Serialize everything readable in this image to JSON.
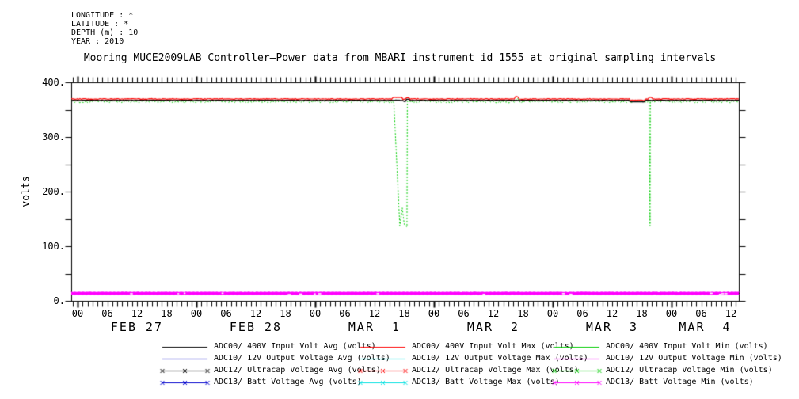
{
  "meta": {
    "lines": [
      "LONGITUDE : *",
      "LATITUDE : *",
      "DEPTH (m) : 10",
      "YEAR : 2010"
    ]
  },
  "chart_data": {
    "type": "line",
    "title": "Mooring MUCE2009LAB Controller–Power data from MBARI instrument id 1555 at original sampling intervals",
    "ylabel": "volts",
    "ylim": [
      0,
      400
    ],
    "y_minor_step": 50,
    "y_ticks": [
      {
        "v": 400,
        "label": "400."
      },
      {
        "v": 300,
        "label": "300."
      },
      {
        "v": 200,
        "label": "200."
      },
      {
        "v": 100,
        "label": "100."
      },
      {
        "v": 0,
        "label": "0."
      }
    ],
    "x_axis": {
      "start_hour": -1.28,
      "end_hour": 133.6,
      "hour_tick_step": 1,
      "hour_label_step": 6,
      "hour_labels": [
        "00",
        "06",
        "12",
        "18"
      ],
      "days": [
        {
          "label": "FEB 27"
        },
        {
          "label": "FEB 28"
        },
        {
          "label": "MAR  1"
        },
        {
          "label": "MAR  2"
        },
        {
          "label": "MAR  3"
        },
        {
          "label": "MAR  4"
        }
      ]
    },
    "grid": false,
    "legend_position": "bottom",
    "series": [
      {
        "id": "adc00_avg",
        "label": "ADC00/ 400V Input Volt Avg (volts)",
        "color": "#000000",
        "marker": false,
        "legend_col": 0,
        "legend_row": 0,
        "base": 367,
        "noise": 0.35,
        "width": 1.4,
        "bumps": [
          [
            65.8,
            66.3,
            -2
          ],
          [
            66.35,
            67.0,
            2
          ],
          [
            111.5,
            114.5,
            -2.5
          ]
        ]
      },
      {
        "id": "adc10_avg",
        "label": "ADC10/ 12V Output Voltage Avg (volts)",
        "color": "#0000cc",
        "marker": false,
        "legend_col": 0,
        "legend_row": 1,
        "base": 13.3,
        "noise": 0.15,
        "width": 1
      },
      {
        "id": "adc12_avg",
        "label": "ADC12/ Ultracap Voltage Avg (volts)",
        "color": "#000000",
        "marker": true,
        "legend_col": 0,
        "legend_row": 2,
        "base": 13.7,
        "noise": 0.15,
        "width": 1
      },
      {
        "id": "adc13_avg",
        "label": "ADC13/ Batt Voltage Avg (volts)",
        "color": "#0000cc",
        "marker": true,
        "legend_col": 0,
        "legend_row": 3,
        "base": 13.1,
        "noise": 0.15,
        "width": 1
      },
      {
        "id": "adc00_max",
        "label": "ADC00/ 400V Input Volt Max (volts)",
        "color": "#ff0000",
        "marker": false,
        "legend_col": 1,
        "legend_row": 0,
        "base": 369.6,
        "noise": 0.7,
        "width": 1.2,
        "bumps": [
          [
            63.5,
            65.5,
            3
          ],
          [
            66.3,
            67.2,
            2.5
          ],
          [
            88.3,
            89.0,
            4
          ],
          [
            111.5,
            114.5,
            -2.5
          ],
          [
            115.4,
            116.2,
            3
          ]
        ]
      },
      {
        "id": "adc10_max",
        "label": "ADC10/ 12V Output Voltage Max (volts)",
        "color": "#00e0e0",
        "marker": false,
        "legend_col": 1,
        "legend_row": 1,
        "base": 14.5,
        "noise": 0.15,
        "width": 1
      },
      {
        "id": "adc12_max",
        "label": "ADC12/ Ultracap Voltage Max (volts)",
        "color": "#ff0000",
        "marker": true,
        "legend_col": 1,
        "legend_row": 2,
        "base": 14.2,
        "noise": 0.15,
        "width": 1
      },
      {
        "id": "adc13_max",
        "label": "ADC13/ Batt Voltage Max (volts)",
        "color": "#00e0e0",
        "marker": true,
        "legend_col": 1,
        "legend_row": 3,
        "base": 14.0,
        "noise": 0.15,
        "width": 1
      },
      {
        "id": "adc00_min",
        "label": "ADC00/ 400V Input Volt Min (volts)",
        "color": "#00cc00",
        "marker": false,
        "legend_col": 2,
        "legend_row": 0,
        "base": 364.6,
        "noise": 2.0,
        "width": 1,
        "dash": [
          2,
          2
        ],
        "bumps": [
          [
            88.3,
            89.0,
            4
          ]
        ],
        "anchors": [
          [
            [
              63.9,
              362
            ],
            [
              64.5,
              250
            ],
            [
              65.1,
              137
            ],
            [
              65.6,
              170
            ],
            [
              66.0,
              140
            ],
            [
              66.55,
              135
            ],
            [
              66.62,
              365
            ]
          ],
          [
            [
              115.5,
              364
            ],
            [
              115.6,
              212
            ],
            [
              115.66,
              137
            ],
            [
              115.74,
              364
            ]
          ]
        ]
      },
      {
        "id": "adc10_min",
        "label": "ADC10/ 12V Output Voltage Min (volts)",
        "color": "#ff00ff",
        "marker": false,
        "legend_col": 2,
        "legend_row": 1,
        "base": 13.0,
        "noise": 0.15,
        "width": 2
      },
      {
        "id": "adc12_min",
        "label": "ADC12/ Ultracap Voltage Min (volts)",
        "color": "#00cc00",
        "marker": true,
        "legend_col": 2,
        "legend_row": 2,
        "base": 13.4,
        "noise": 0.15,
        "width": 1
      },
      {
        "id": "adc13_min",
        "label": "ADC13/ Batt Voltage Min (volts)",
        "color": "#ff00ff",
        "marker": true,
        "legend_col": 2,
        "legend_row": 3,
        "base": 13.8,
        "noise": 0.25,
        "width": 3.5,
        "plot_markers": true
      }
    ]
  }
}
